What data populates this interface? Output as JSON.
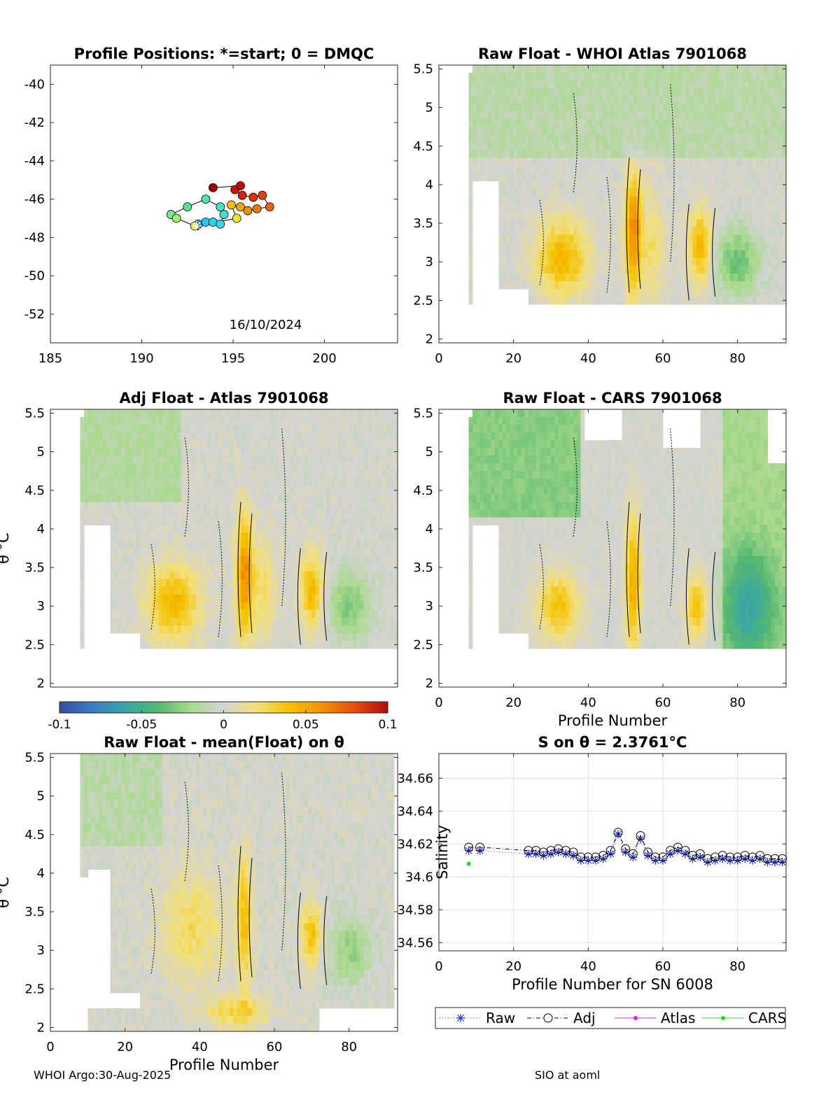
{
  "footer": {
    "left": "WHOI Argo:30-Aug-2025",
    "right": "SIO at aoml"
  },
  "colorbar": {
    "ticks": [
      "-0.1",
      "-0.05",
      "0",
      "0.05",
      "0.1"
    ],
    "stops": [
      "#3a4b9f",
      "#3b7bc0",
      "#3aa6a6",
      "#56b870",
      "#a9d98c",
      "#d4d4d4",
      "#f2e07a",
      "#f5c200",
      "#f39200",
      "#e44c10",
      "#b10c0c"
    ]
  },
  "chart_data": [
    {
      "type": "scatter",
      "id": "positions",
      "title": "Profile Positions: *=start; 0 = DMQC",
      "xlim": [
        185,
        204
      ],
      "ylim": [
        -53.5,
        -39
      ],
      "xticks": [
        "185",
        "190",
        "195",
        "200"
      ],
      "yticks": [
        "-40",
        "-42",
        "-44",
        "-46",
        "-48",
        "-50",
        "-52"
      ],
      "annotation": "16/10/2024",
      "points": [
        {
          "x": 193.0,
          "y": -47.4,
          "c": "#2a3fa0"
        },
        {
          "x": 193.1,
          "y": -47.3,
          "c": "#3aa0d0"
        },
        {
          "x": 193.5,
          "y": -47.2,
          "c": "#35c2e8"
        },
        {
          "x": 193.9,
          "y": -47.2,
          "c": "#2fd0f0"
        },
        {
          "x": 194.3,
          "y": -47.3,
          "c": "#38d8e0"
        },
        {
          "x": 194.5,
          "y": -46.8,
          "c": "#40e0d8"
        },
        {
          "x": 194.3,
          "y": -46.4,
          "c": "#45e0c8"
        },
        {
          "x": 193.5,
          "y": -46.0,
          "c": "#4ee0b0"
        },
        {
          "x": 192.5,
          "y": -46.4,
          "c": "#58e098"
        },
        {
          "x": 191.6,
          "y": -46.8,
          "c": "#80e890"
        },
        {
          "x": 191.9,
          "y": -47.0,
          "c": "#a0f070"
        },
        {
          "x": 192.9,
          "y": -47.4,
          "c": "#d8f050"
        },
        {
          "x": 195.2,
          "y": -47.0,
          "c": "#f0e830"
        },
        {
          "x": 194.9,
          "y": -46.3,
          "c": "#f0c000"
        },
        {
          "x": 195.4,
          "y": -46.4,
          "c": "#f0a800"
        },
        {
          "x": 195.8,
          "y": -46.6,
          "c": "#f09000"
        },
        {
          "x": 196.3,
          "y": -46.5,
          "c": "#f07800"
        },
        {
          "x": 197.0,
          "y": -46.4,
          "c": "#f06000"
        },
        {
          "x": 196.6,
          "y": -45.8,
          "c": "#e84000"
        },
        {
          "x": 196.1,
          "y": -45.9,
          "c": "#e03000"
        },
        {
          "x": 195.5,
          "y": -45.8,
          "c": "#d82000"
        },
        {
          "x": 195.1,
          "y": -45.5,
          "c": "#cc1000"
        },
        {
          "x": 195.4,
          "y": -45.3,
          "c": "#c00000"
        },
        {
          "x": 193.9,
          "y": -45.4,
          "c": "#a00000"
        }
      ]
    },
    {
      "type": "heatmap",
      "id": "whoi",
      "title": "Raw Float - WHOI Atlas  7901068",
      "xlabel": "",
      "ylabel": "",
      "xlim": [
        0,
        93
      ],
      "ylim": [
        1.95,
        5.55
      ],
      "xticks": [
        "0",
        "20",
        "40",
        "60",
        "80"
      ],
      "yticks": [
        "2",
        "2.5",
        "3",
        "3.5",
        "4",
        "4.5",
        "5",
        "5.5"
      ]
    },
    {
      "type": "heatmap",
      "id": "adj",
      "title": "Adj Float - Atlas  7901068",
      "xlabel": "",
      "ylabel": "θ °C",
      "xlim": [
        0,
        93
      ],
      "ylim": [
        1.95,
        5.55
      ],
      "xticks": [],
      "yticks": [
        "2",
        "2.5",
        "3",
        "3.5",
        "4",
        "4.5",
        "5",
        "5.5"
      ]
    },
    {
      "type": "heatmap",
      "id": "cars",
      "title": "Raw Float - CARS  7901068",
      "xlabel": "Profile Number",
      "ylabel": "",
      "xlim": [
        0,
        93
      ],
      "ylim": [
        1.95,
        5.55
      ],
      "xticks": [
        "0",
        "20",
        "40",
        "60",
        "80"
      ],
      "yticks": [
        "2",
        "2.5",
        "3",
        "3.5",
        "4",
        "4.5",
        "5",
        "5.5"
      ]
    },
    {
      "type": "heatmap",
      "id": "mean",
      "title": "Raw Float - mean(Float) on θ",
      "xlabel": "Profile Number",
      "ylabel": "θ °C",
      "xlim": [
        0,
        93
      ],
      "ylim": [
        1.95,
        5.55
      ],
      "xticks": [
        "0",
        "20",
        "40",
        "60",
        "80"
      ],
      "yticks": [
        "2",
        "2.5",
        "3",
        "3.5",
        "4",
        "4.5",
        "5",
        "5.5"
      ]
    },
    {
      "type": "line",
      "id": "salinity",
      "title": "S on θ = 2.3761°C",
      "xlabel": "Profile Number for SN 6008",
      "ylabel": "Salinity",
      "xlim": [
        0,
        93
      ],
      "ylim": [
        34.555,
        34.675
      ],
      "xticks": [
        "0",
        "20",
        "40",
        "60",
        "80"
      ],
      "yticks": [
        "34.56",
        "34.58",
        "34.6",
        "34.62",
        "34.64",
        "34.66"
      ],
      "legend": [
        "Raw",
        "Adj",
        "Atlas",
        "CARS"
      ],
      "series": [
        {
          "name": "Raw",
          "color": "#1f2fd0",
          "x": [
            8,
            11,
            24,
            26,
            28,
            30,
            32,
            34,
            36,
            38,
            40,
            42,
            44,
            46,
            48,
            50,
            52,
            54,
            56,
            58,
            60,
            62,
            64,
            66,
            68,
            70,
            72,
            74,
            76,
            78,
            80,
            82,
            84,
            86,
            88,
            90,
            92
          ],
          "y": [
            34.616,
            34.616,
            34.614,
            34.614,
            34.613,
            34.614,
            34.615,
            34.614,
            34.613,
            34.61,
            34.61,
            34.61,
            34.611,
            34.614,
            34.626,
            34.615,
            34.612,
            34.623,
            34.613,
            34.61,
            34.61,
            34.614,
            34.616,
            34.614,
            34.611,
            34.612,
            34.609,
            34.61,
            34.611,
            34.61,
            34.61,
            34.611,
            34.61,
            34.611,
            34.609,
            34.609,
            34.609
          ]
        },
        {
          "name": "Adj",
          "color": "#000000",
          "x": [
            8,
            11,
            24,
            26,
            28,
            30,
            32,
            34,
            36,
            38,
            40,
            42,
            44,
            46,
            48,
            50,
            52,
            54,
            56,
            58,
            60,
            62,
            64,
            66,
            68,
            70,
            72,
            74,
            76,
            78,
            80,
            82,
            84,
            86,
            88,
            90,
            92
          ],
          "y": [
            34.618,
            34.618,
            34.616,
            34.616,
            34.615,
            34.616,
            34.617,
            34.616,
            34.615,
            34.612,
            34.612,
            34.612,
            34.613,
            34.616,
            34.627,
            34.617,
            34.614,
            34.625,
            34.615,
            34.612,
            34.612,
            34.616,
            34.618,
            34.616,
            34.613,
            34.614,
            34.611,
            34.612,
            34.613,
            34.612,
            34.612,
            34.613,
            34.612,
            34.613,
            34.611,
            34.611,
            34.611
          ]
        },
        {
          "name": "CARS",
          "color": "#18e018",
          "x": [
            8
          ],
          "y": [
            34.608
          ]
        }
      ]
    }
  ]
}
